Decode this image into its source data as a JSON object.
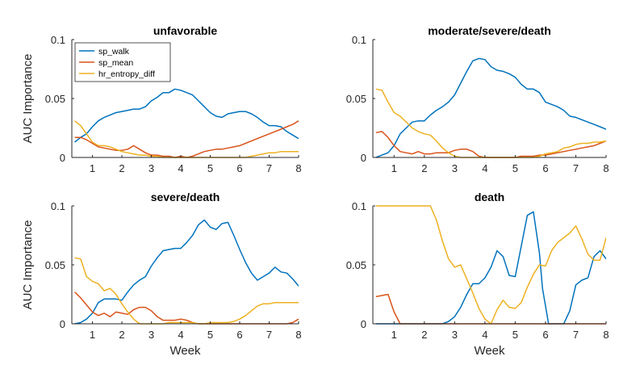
{
  "figure": {
    "background": "#ffffff"
  },
  "chart_data": [
    {
      "type": "line",
      "title": "unfavorable",
      "xlabel": "",
      "ylabel": "AUC Importance",
      "xlim": [
        0.3,
        8
      ],
      "ylim": [
        0,
        0.1
      ],
      "xticks": [
        1,
        2,
        3,
        4,
        5,
        6,
        7,
        8
      ],
      "yticks": [
        0,
        0.05,
        0.1
      ],
      "yticklabels": [
        "0",
        "0.05",
        "0.1"
      ],
      "grid": false,
      "legend": "top-left",
      "series": [
        {
          "name": "sp_walk",
          "color": "#0072BD",
          "x": [
            0.4,
            0.6,
            0.8,
            1.0,
            1.2,
            1.4,
            1.6,
            1.8,
            2.0,
            2.2,
            2.4,
            2.6,
            2.8,
            3.0,
            3.2,
            3.4,
            3.6,
            3.8,
            4.0,
            4.2,
            4.4,
            4.6,
            4.8,
            5.0,
            5.2,
            5.4,
            5.6,
            5.8,
            6.0,
            6.2,
            6.4,
            6.6,
            6.8,
            7.0,
            7.2,
            7.4,
            7.6,
            7.8,
            8.0
          ],
          "y": [
            0.013,
            0.017,
            0.02,
            0.026,
            0.031,
            0.034,
            0.036,
            0.038,
            0.039,
            0.04,
            0.041,
            0.041,
            0.043,
            0.048,
            0.051,
            0.055,
            0.055,
            0.058,
            0.057,
            0.055,
            0.053,
            0.048,
            0.043,
            0.038,
            0.035,
            0.034,
            0.037,
            0.038,
            0.039,
            0.039,
            0.037,
            0.034,
            0.03,
            0.027,
            0.027,
            0.026,
            0.022,
            0.019,
            0.016
          ]
        },
        {
          "name": "sp_mean",
          "color": "#D95319",
          "x": [
            0.4,
            0.6,
            0.8,
            1.0,
            1.2,
            1.4,
            1.6,
            1.8,
            2.0,
            2.2,
            2.4,
            2.6,
            2.8,
            3.0,
            3.2,
            3.4,
            3.6,
            3.8,
            4.0,
            4.2,
            4.4,
            4.6,
            4.8,
            5.0,
            5.2,
            5.4,
            5.6,
            5.8,
            6.0,
            6.2,
            6.4,
            6.6,
            6.8,
            7.0,
            7.2,
            7.4,
            7.6,
            7.8,
            8.0
          ],
          "y": [
            0.017,
            0.017,
            0.015,
            0.012,
            0.009,
            0.008,
            0.007,
            0.006,
            0.006,
            0.007,
            0.01,
            0.007,
            0.004,
            0.002,
            0.002,
            0.001,
            0.001,
            0.0,
            0.001,
            0.0,
            0.001,
            0.003,
            0.005,
            0.006,
            0.007,
            0.007,
            0.008,
            0.009,
            0.01,
            0.012,
            0.014,
            0.016,
            0.018,
            0.02,
            0.022,
            0.024,
            0.026,
            0.028,
            0.031
          ]
        },
        {
          "name": "hr_entropy_diff",
          "color": "#EDB120",
          "x": [
            0.4,
            0.6,
            0.8,
            1.0,
            1.2,
            1.4,
            1.6,
            1.8,
            2.0,
            2.2,
            2.4,
            2.6,
            2.8,
            3.0,
            3.2,
            3.4,
            3.6,
            3.8,
            4.0,
            4.2,
            4.4,
            4.6,
            4.8,
            5.0,
            5.2,
            5.4,
            5.6,
            5.8,
            6.0,
            6.2,
            6.4,
            6.6,
            6.8,
            7.0,
            7.2,
            7.4,
            7.6,
            7.8,
            8.0
          ],
          "y": [
            0.031,
            0.027,
            0.02,
            0.013,
            0.01,
            0.01,
            0.009,
            0.007,
            0.005,
            0.004,
            0.003,
            0.002,
            0.002,
            0.001,
            0.001,
            0.0,
            0.0,
            0.0,
            0.0,
            0.0,
            0.0,
            0.0,
            0.0,
            0.0,
            0.0,
            0.0,
            0.0,
            0.0,
            0.0,
            0.0,
            0.001,
            0.002,
            0.003,
            0.004,
            0.004,
            0.005,
            0.005,
            0.005,
            0.005
          ]
        }
      ]
    },
    {
      "type": "line",
      "title": "moderate/severe/death",
      "xlabel": "",
      "ylabel": "",
      "xlim": [
        0.3,
        8
      ],
      "ylim": [
        0,
        0.1
      ],
      "xticks": [
        1,
        2,
        3,
        4,
        5,
        6,
        7,
        8
      ],
      "yticks": [
        0,
        0.05,
        0.1
      ],
      "yticklabels": [
        "0",
        "0.05",
        "0.1"
      ],
      "grid": false,
      "legend": "none",
      "series": [
        {
          "name": "sp_walk",
          "color": "#0072BD",
          "x": [
            0.4,
            0.6,
            0.8,
            1.0,
            1.2,
            1.4,
            1.6,
            1.8,
            2.0,
            2.2,
            2.4,
            2.6,
            2.8,
            3.0,
            3.2,
            3.4,
            3.6,
            3.8,
            4.0,
            4.2,
            4.4,
            4.6,
            4.8,
            5.0,
            5.2,
            5.4,
            5.6,
            5.8,
            6.0,
            6.2,
            6.4,
            6.6,
            6.8,
            7.0,
            7.2,
            7.4,
            7.6,
            7.8,
            8.0
          ],
          "y": [
            0.0,
            0.002,
            0.004,
            0.01,
            0.02,
            0.025,
            0.03,
            0.031,
            0.031,
            0.036,
            0.04,
            0.043,
            0.047,
            0.053,
            0.063,
            0.073,
            0.082,
            0.084,
            0.083,
            0.077,
            0.074,
            0.073,
            0.071,
            0.068,
            0.062,
            0.058,
            0.058,
            0.055,
            0.047,
            0.045,
            0.043,
            0.04,
            0.035,
            0.034,
            0.032,
            0.03,
            0.028,
            0.026,
            0.024
          ]
        },
        {
          "name": "sp_mean",
          "color": "#D95319",
          "x": [
            0.4,
            0.6,
            0.8,
            1.0,
            1.2,
            1.4,
            1.6,
            1.8,
            2.0,
            2.2,
            2.4,
            2.6,
            2.8,
            3.0,
            3.2,
            3.4,
            3.6,
            3.8,
            4.0,
            4.2,
            4.4,
            4.6,
            4.8,
            5.0,
            5.2,
            5.4,
            5.6,
            5.8,
            6.0,
            6.2,
            6.4,
            6.6,
            6.8,
            7.0,
            7.2,
            7.4,
            7.6,
            7.8,
            8.0
          ],
          "y": [
            0.021,
            0.022,
            0.017,
            0.01,
            0.005,
            0.004,
            0.003,
            0.005,
            0.003,
            0.003,
            0.004,
            0.004,
            0.004,
            0.006,
            0.007,
            0.007,
            0.005,
            0.001,
            0.0,
            0.0,
            0.0,
            0.0,
            0.0,
            0.0,
            0.001,
            0.001,
            0.001,
            0.002,
            0.002,
            0.003,
            0.004,
            0.005,
            0.006,
            0.007,
            0.008,
            0.009,
            0.01,
            0.012,
            0.014
          ]
        },
        {
          "name": "hr_entropy_diff",
          "color": "#EDB120",
          "x": [
            0.4,
            0.6,
            0.8,
            1.0,
            1.2,
            1.4,
            1.6,
            1.8,
            2.0,
            2.2,
            2.4,
            2.6,
            2.8,
            3.0,
            3.2,
            3.4,
            3.6,
            3.8,
            4.0,
            4.2,
            4.4,
            4.6,
            4.8,
            5.0,
            5.2,
            5.4,
            5.6,
            5.8,
            6.0,
            6.2,
            6.4,
            6.6,
            6.8,
            7.0,
            7.2,
            7.4,
            7.6,
            7.8,
            8.0
          ],
          "y": [
            0.058,
            0.057,
            0.047,
            0.038,
            0.035,
            0.03,
            0.025,
            0.022,
            0.02,
            0.019,
            0.014,
            0.008,
            0.004,
            0.001,
            0.0,
            0.0,
            0.0,
            0.0,
            0.0,
            0.0,
            0.0,
            0.0,
            0.0,
            0.0,
            0.0,
            0.0,
            0.0,
            0.001,
            0.003,
            0.004,
            0.005,
            0.008,
            0.009,
            0.011,
            0.012,
            0.012,
            0.013,
            0.013,
            0.014
          ]
        }
      ]
    },
    {
      "type": "line",
      "title": "severe/death",
      "xlabel": "Week",
      "ylabel": "AUC Importance",
      "xlim": [
        0.3,
        8
      ],
      "ylim": [
        0,
        0.1
      ],
      "xticks": [
        1,
        2,
        3,
        4,
        5,
        6,
        7,
        8
      ],
      "yticks": [
        0,
        0.05,
        0.1
      ],
      "yticklabels": [
        "0",
        "0.05",
        "0.1"
      ],
      "grid": false,
      "legend": "none",
      "series": [
        {
          "name": "sp_walk",
          "color": "#0072BD",
          "x": [
            0.4,
            0.6,
            0.8,
            1.0,
            1.2,
            1.4,
            1.6,
            1.8,
            2.0,
            2.2,
            2.4,
            2.6,
            2.8,
            3.0,
            3.2,
            3.4,
            3.6,
            3.8,
            4.0,
            4.2,
            4.4,
            4.6,
            4.8,
            5.0,
            5.2,
            5.4,
            5.6,
            5.8,
            6.0,
            6.2,
            6.4,
            6.6,
            6.8,
            7.0,
            7.2,
            7.4,
            7.6,
            7.8,
            8.0
          ],
          "y": [
            0.0,
            0.001,
            0.004,
            0.009,
            0.018,
            0.021,
            0.021,
            0.021,
            0.02,
            0.027,
            0.033,
            0.037,
            0.04,
            0.049,
            0.056,
            0.062,
            0.063,
            0.064,
            0.064,
            0.069,
            0.075,
            0.084,
            0.088,
            0.082,
            0.08,
            0.085,
            0.086,
            0.075,
            0.063,
            0.052,
            0.043,
            0.037,
            0.04,
            0.043,
            0.048,
            0.044,
            0.043,
            0.038,
            0.032
          ]
        },
        {
          "name": "sp_mean",
          "color": "#D95319",
          "x": [
            0.4,
            0.6,
            0.8,
            1.0,
            1.2,
            1.4,
            1.6,
            1.8,
            2.0,
            2.2,
            2.4,
            2.6,
            2.8,
            3.0,
            3.2,
            3.4,
            3.6,
            3.8,
            4.0,
            4.2,
            4.4,
            4.6,
            4.8,
            5.0,
            5.2,
            5.4,
            5.6,
            5.8,
            6.0,
            6.2,
            6.4,
            6.6,
            6.8,
            7.0,
            7.2,
            7.4,
            7.6,
            7.8,
            8.0
          ],
          "y": [
            0.027,
            0.022,
            0.016,
            0.01,
            0.007,
            0.009,
            0.006,
            0.01,
            0.009,
            0.008,
            0.012,
            0.014,
            0.014,
            0.011,
            0.006,
            0.003,
            0.003,
            0.003,
            0.004,
            0.003,
            0.001,
            0.0,
            0.0,
            0.0,
            0.0,
            0.0,
            0.0,
            0.0,
            0.0,
            0.0,
            0.0,
            0.0,
            0.0,
            0.0,
            0.0,
            0.0,
            0.0,
            0.001,
            0.004
          ]
        },
        {
          "name": "hr_entropy_diff",
          "color": "#EDB120",
          "x": [
            0.4,
            0.6,
            0.8,
            1.0,
            1.2,
            1.4,
            1.6,
            1.8,
            2.0,
            2.2,
            2.4,
            2.6,
            2.8,
            3.0,
            3.2,
            3.4,
            3.6,
            3.8,
            4.0,
            4.2,
            4.4,
            4.6,
            4.8,
            5.0,
            5.2,
            5.4,
            5.6,
            5.8,
            6.0,
            6.2,
            6.4,
            6.6,
            6.8,
            7.0,
            7.2,
            7.4,
            7.6,
            7.8,
            8.0
          ],
          "y": [
            0.056,
            0.055,
            0.04,
            0.036,
            0.034,
            0.028,
            0.03,
            0.025,
            0.017,
            0.01,
            0.004,
            0.0,
            0.0,
            0.0,
            0.0,
            0.0,
            0.001,
            0.001,
            0.001,
            0.001,
            0.001,
            0.0,
            0.0,
            0.001,
            0.001,
            0.001,
            0.001,
            0.002,
            0.004,
            0.007,
            0.011,
            0.015,
            0.017,
            0.017,
            0.018,
            0.018,
            0.018,
            0.018,
            0.018
          ]
        }
      ]
    },
    {
      "type": "line",
      "title": "death",
      "xlabel": "Week",
      "ylabel": "",
      "xlim": [
        0.3,
        8
      ],
      "ylim": [
        0,
        0.1
      ],
      "xticks": [
        1,
        2,
        3,
        4,
        5,
        6,
        7,
        8
      ],
      "yticks": [
        0,
        0.05,
        0.1
      ],
      "yticklabels": [
        "0",
        "0.05",
        "0.1"
      ],
      "grid": false,
      "legend": "none",
      "series": [
        {
          "name": "sp_walk",
          "color": "#0072BD",
          "x": [
            0.4,
            2.6,
            2.8,
            3.0,
            3.2,
            3.4,
            3.6,
            3.8,
            4.0,
            4.2,
            4.4,
            4.6,
            4.8,
            5.0,
            5.2,
            5.4,
            5.6,
            5.8,
            5.9,
            6.1,
            6.6,
            6.8,
            7.0,
            7.2,
            7.4,
            7.6,
            7.8,
            8.0
          ],
          "y": [
            0.0,
            0.0,
            0.002,
            0.006,
            0.014,
            0.025,
            0.034,
            0.034,
            0.039,
            0.048,
            0.062,
            0.057,
            0.041,
            0.04,
            0.066,
            0.092,
            0.095,
            0.06,
            0.03,
            0.0,
            0.0,
            0.011,
            0.033,
            0.037,
            0.039,
            0.057,
            0.062,
            0.055
          ]
        },
        {
          "name": "sp_mean",
          "color": "#D95319",
          "x": [
            0.4,
            0.6,
            0.8,
            1.0,
            1.2,
            8.0
          ],
          "y": [
            0.023,
            0.024,
            0.025,
            0.01,
            0.0,
            0.0
          ]
        },
        {
          "name": "hr_entropy_diff",
          "color": "#EDB120",
          "x": [
            0.4,
            0.6,
            0.8,
            1.0,
            1.2,
            1.4,
            1.6,
            1.8,
            2.0,
            2.2,
            2.4,
            2.6,
            2.8,
            3.0,
            3.2,
            3.4,
            3.6,
            3.8,
            4.0,
            4.2,
            4.4,
            4.6,
            4.8,
            5.0,
            5.2,
            5.4,
            5.6,
            5.8,
            6.0,
            6.2,
            6.4,
            6.6,
            6.8,
            7.0,
            7.2,
            7.4,
            7.6,
            7.8,
            8.0
          ],
          "y": [
            0.1,
            0.1,
            0.1,
            0.1,
            0.1,
            0.1,
            0.1,
            0.1,
            0.1,
            0.1,
            0.088,
            0.07,
            0.055,
            0.048,
            0.05,
            0.038,
            0.026,
            0.013,
            0.004,
            0.0,
            0.012,
            0.02,
            0.014,
            0.013,
            0.018,
            0.031,
            0.042,
            0.05,
            0.049,
            0.062,
            0.069,
            0.073,
            0.077,
            0.083,
            0.072,
            0.059,
            0.054,
            0.054,
            0.073
          ]
        }
      ]
    }
  ]
}
